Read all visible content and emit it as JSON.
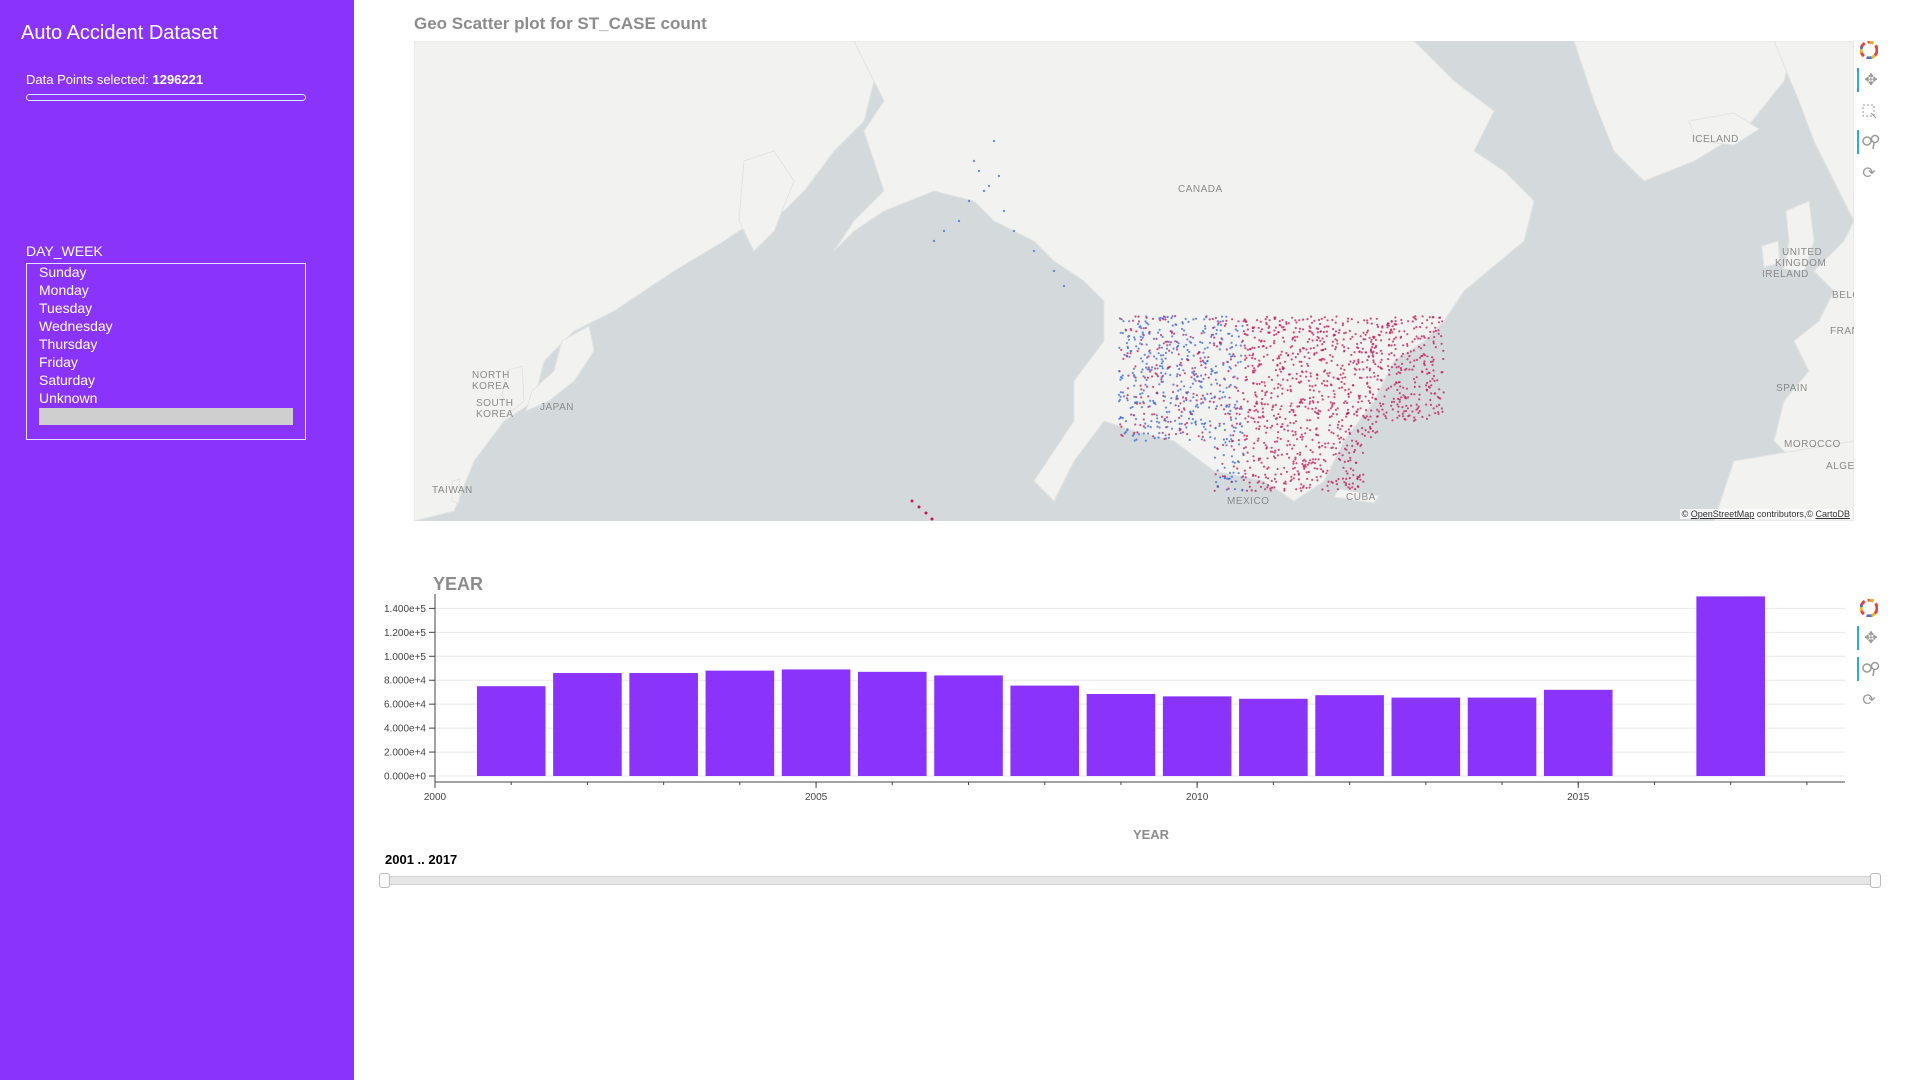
{
  "app": {
    "title": "Auto Accident Dataset"
  },
  "selection": {
    "label": "Data Points selected:",
    "count": "1296221",
    "progress": 1.0
  },
  "day_week": {
    "label": "DAY_WEEK",
    "options": [
      "Sunday",
      "Monday",
      "Tuesday",
      "Wednesday",
      "Thursday",
      "Friday",
      "Saturday",
      "Unknown"
    ]
  },
  "geo": {
    "title": "Geo Scatter plot for ST_CASE count",
    "place_labels": [
      "CANADA",
      "ICELAND",
      "UNITED",
      "KINGDOM",
      "IRELAND",
      "BELG",
      "FRANC",
      "SPAIN",
      "MOROCCO",
      "ALGER",
      "NORTH",
      "KOREA",
      "SOUTH",
      "KOREA",
      "JAPAN",
      "TAIWAN",
      "MEXICO",
      "CUBA"
    ],
    "attribution": {
      "prefix": "© ",
      "osm": "OpenStreetMap",
      "middle": " contributors,© ",
      "carto": "CartoDB"
    }
  },
  "toolbar_map": [
    "bokeh-logo-icon",
    "pan-icon",
    "box-select-icon",
    "wheel-zoom-icon",
    "reset-icon"
  ],
  "toolbar_bar": [
    "bokeh-logo-icon",
    "pan-icon",
    "wheel-zoom-icon",
    "reset-icon"
  ],
  "chart_data": {
    "type": "bar",
    "title": "YEAR",
    "xlabel": "YEAR",
    "ylabel": "",
    "categories": [
      2001,
      2002,
      2003,
      2004,
      2005,
      2006,
      2007,
      2008,
      2009,
      2010,
      2011,
      2012,
      2013,
      2014,
      2015,
      2016,
      2017
    ],
    "values": [
      75000,
      86000,
      86000,
      88000,
      89000,
      87000,
      84000,
      75500,
      68500,
      66500,
      64500,
      67500,
      65500,
      65500,
      72000,
      0,
      150000
    ],
    "xlim": [
      2000,
      2018.5
    ],
    "ylim": [
      -5000,
      152000
    ],
    "x_ticks": [
      2000,
      2005,
      2010,
      2015
    ],
    "y_ticks": [
      0,
      20000,
      40000,
      60000,
      80000,
      100000,
      120000,
      140000
    ],
    "y_tick_labels": [
      "0.000e+0",
      "2.000e+4",
      "4.000e+4",
      "6.000e+4",
      "8.000e+4",
      "1.000e+5",
      "1.200e+5",
      "1.400e+5"
    ],
    "bar_color": "#8a33fb",
    "grid": true
  },
  "range_slider": {
    "label": "2001 .. 2017",
    "start": 2001,
    "end": 2017
  },
  "colors": {
    "sidebar": "#8a33fb",
    "bar": "#8a33fb",
    "map_water": "#d4dadc",
    "map_land": "#f2f2f0"
  }
}
